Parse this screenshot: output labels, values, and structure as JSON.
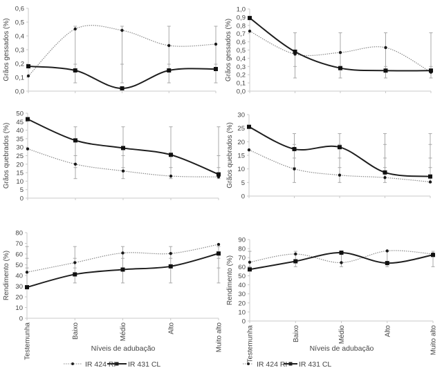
{
  "colors": {
    "axis": "#c8c8c8",
    "errorbar": "#a8a8a8",
    "series_dotted": "#888888",
    "series_solid": "#1e1e1e",
    "text": "#444444"
  },
  "legend": {
    "items": [
      {
        "label": "IR 424 RI",
        "style": "dotted",
        "marker": "circle"
      },
      {
        "label": "IR 431 CL",
        "style": "solid",
        "marker": "square"
      }
    ]
  },
  "chart_data": [
    {
      "id": "gessados-left",
      "type": "line",
      "ylabel": "Grãos gessados (%)",
      "xlabel": "",
      "ylim": [
        0,
        0.6
      ],
      "yticks": [
        "0,0",
        "0,1",
        "0,2",
        "0,3",
        "0,4",
        "0,5",
        "0,6"
      ],
      "ytick_values": [
        0,
        0.1,
        0.2,
        0.3,
        0.4,
        0.5,
        0.6
      ],
      "categories": [
        "Testemunha",
        "Baixo",
        "Médio",
        "Alto",
        "Muito alto"
      ],
      "show_category_labels": false,
      "series": [
        {
          "name": "IR 424 RI",
          "values": [
            0.11,
            0.45,
            0.44,
            0.33,
            0.34
          ]
        },
        {
          "name": "IR 431 CL",
          "values": [
            0.18,
            0.15,
            0.02,
            0.15,
            0.16
          ]
        }
      ],
      "error_bars": [
        {
          "low": 0.17,
          "high": 0.19,
          "caps": []
        },
        {
          "low": 0.06,
          "high": 0.47,
          "caps": [
            0.195
          ]
        },
        {
          "low": 0.06,
          "high": 0.47,
          "caps": [
            0.195
          ]
        },
        {
          "low": 0.06,
          "high": 0.47,
          "caps": [
            0.195
          ]
        },
        {
          "low": 0.06,
          "high": 0.47,
          "caps": [
            0.195
          ]
        }
      ]
    },
    {
      "id": "gessados-right",
      "type": "line",
      "ylabel": "Grãos gessados (%)",
      "xlabel": "",
      "ylim": [
        0,
        1.0
      ],
      "yticks": [
        "0,0",
        "0,1",
        "0,2",
        "0,3",
        "0,4",
        "0,5",
        "0,6",
        "0,7",
        "0,8",
        "0,9",
        "1,0"
      ],
      "ytick_values": [
        0,
        0.1,
        0.2,
        0.3,
        0.4,
        0.5,
        0.6,
        0.7,
        0.8,
        0.9,
        1.0
      ],
      "categories": [
        "Testemunha",
        "Baixo",
        "Médio",
        "Alto",
        "Muito alto"
      ],
      "show_category_labels": false,
      "series": [
        {
          "name": "IR 424 RI",
          "values": [
            0.73,
            0.45,
            0.47,
            0.53,
            0.23
          ]
        },
        {
          "name": "IR 431 CL",
          "values": [
            0.89,
            0.48,
            0.28,
            0.25,
            0.25
          ]
        }
      ],
      "error_bars": [
        {
          "low": 0.88,
          "high": 0.9,
          "caps": []
        },
        {
          "low": 0.16,
          "high": 0.71,
          "caps": [
            0.3
          ]
        },
        {
          "low": 0.16,
          "high": 0.71,
          "caps": [
            0.3
          ]
        },
        {
          "low": 0.16,
          "high": 0.71,
          "caps": [
            0.3
          ]
        },
        {
          "low": 0.16,
          "high": 0.71,
          "caps": [
            0.3
          ]
        }
      ]
    },
    {
      "id": "quebrados-left",
      "type": "line",
      "ylabel": "Grãos quebrados (%)",
      "xlabel": "",
      "ylim": [
        0,
        50
      ],
      "yticks": [
        "0",
        "5",
        "10",
        "15",
        "20",
        "25",
        "30",
        "35",
        "40",
        "45",
        "50"
      ],
      "ytick_values": [
        0,
        5,
        10,
        15,
        20,
        25,
        30,
        35,
        40,
        45,
        50
      ],
      "categories": [
        "Testemunha",
        "Baixo",
        "Médio",
        "Alto",
        "Muito alto"
      ],
      "show_category_labels": false,
      "series": [
        {
          "name": "IR 424 RI",
          "values": [
            29,
            20,
            16,
            13,
            12.5
          ]
        },
        {
          "name": "IR 431 CL",
          "values": [
            46.5,
            34,
            29.5,
            25.5,
            14
          ]
        }
      ],
      "error_bars": [
        {
          "low": 46,
          "high": 47,
          "caps": []
        },
        {
          "low": 11.5,
          "high": 42,
          "caps": [
            18,
            25
          ]
        },
        {
          "low": 11.5,
          "high": 42,
          "caps": [
            18,
            25
          ]
        },
        {
          "low": 11.5,
          "high": 42,
          "caps": [
            18,
            25
          ]
        },
        {
          "low": 11.5,
          "high": 42,
          "caps": [
            18,
            25
          ]
        }
      ]
    },
    {
      "id": "quebrados-right",
      "type": "line",
      "ylabel": "Grãos quebrados (%)",
      "xlabel": "",
      "ylim": [
        0,
        30
      ],
      "yticks": [
        "0",
        "5",
        "10",
        "15",
        "20",
        "25",
        "30"
      ],
      "ytick_values": [
        0,
        5,
        10,
        15,
        20,
        25,
        30
      ],
      "categories": [
        "Testemunha",
        "Baixo",
        "Médio",
        "Alto",
        "Muito alto"
      ],
      "show_category_labels": false,
      "series": [
        {
          "name": "IR 424 RI",
          "values": [
            17,
            10,
            7.7,
            6.8,
            5.2
          ]
        },
        {
          "name": "IR 431 CL",
          "values": [
            25.5,
            17.3,
            18,
            8.7,
            7.2
          ]
        }
      ],
      "error_bars": [
        {
          "low": 25,
          "high": 26,
          "caps": []
        },
        {
          "low": 5,
          "high": 23,
          "caps": [
            10.5,
            14,
            19
          ]
        },
        {
          "low": 5,
          "high": 23,
          "caps": [
            10.5,
            14,
            19
          ]
        },
        {
          "low": 5,
          "high": 23,
          "caps": [
            10.5,
            14,
            19
          ]
        },
        {
          "low": 5,
          "high": 23,
          "caps": [
            10.5,
            14,
            19
          ]
        }
      ]
    },
    {
      "id": "rendimento-left",
      "type": "line",
      "ylabel": "Rendimento (%)",
      "xlabel": "Níveis de adubação",
      "ylim": [
        0,
        80
      ],
      "yticks": [
        "0",
        "10",
        "20",
        "30",
        "40",
        "50",
        "60",
        "70",
        "80"
      ],
      "ytick_values": [
        0,
        10,
        20,
        30,
        40,
        50,
        60,
        70,
        80
      ],
      "categories": [
        "Testemunha",
        "Baixo",
        "Médio",
        "Alto",
        "Muito alto"
      ],
      "show_category_labels": true,
      "series": [
        {
          "name": "IR 424 RI",
          "values": [
            43,
            52,
            61,
            60.5,
            69
          ]
        },
        {
          "name": "IR 431 CL",
          "values": [
            29,
            41,
            45.5,
            48.5,
            60.5
          ]
        }
      ],
      "error_bars": [
        {
          "low": 28,
          "high": 67,
          "caps": [
            47,
            56
          ]
        },
        {
          "low": 33,
          "high": 67,
          "caps": [
            47,
            56
          ]
        },
        {
          "low": 33,
          "high": 67,
          "caps": [
            47,
            56
          ]
        },
        {
          "low": 33,
          "high": 67,
          "caps": [
            47,
            56
          ]
        },
        {
          "low": 33,
          "high": 67,
          "caps": [
            47,
            56
          ]
        }
      ]
    },
    {
      "id": "rendimento-right",
      "type": "line",
      "ylabel": "Rendimento (%)",
      "xlabel": "Níveis de adubação",
      "ylim": [
        0,
        90
      ],
      "yticks": [
        "0",
        "10",
        "20",
        "30",
        "40",
        "50",
        "60",
        "70",
        "80",
        "90"
      ],
      "ytick_values": [
        0,
        10,
        20,
        30,
        40,
        50,
        60,
        70,
        80,
        90
      ],
      "categories": [
        "Testemunha",
        "Baixo",
        "Médio",
        "Alto",
        "Muito alto"
      ],
      "show_category_labels": true,
      "series": [
        {
          "name": "IR 424 RI",
          "values": [
            65,
            74,
            64.5,
            77.5,
            74
          ]
        },
        {
          "name": "IR 431 CL",
          "values": [
            57,
            66,
            75.5,
            64,
            73
          ]
        }
      ],
      "error_bars": [
        {
          "low": 60,
          "high": 77,
          "caps": []
        },
        {
          "low": 60,
          "high": 77,
          "caps": []
        },
        {
          "low": 60,
          "high": 77,
          "caps": []
        },
        {
          "low": 60,
          "high": 77,
          "caps": []
        },
        {
          "low": 60,
          "high": 77,
          "caps": []
        }
      ]
    }
  ]
}
